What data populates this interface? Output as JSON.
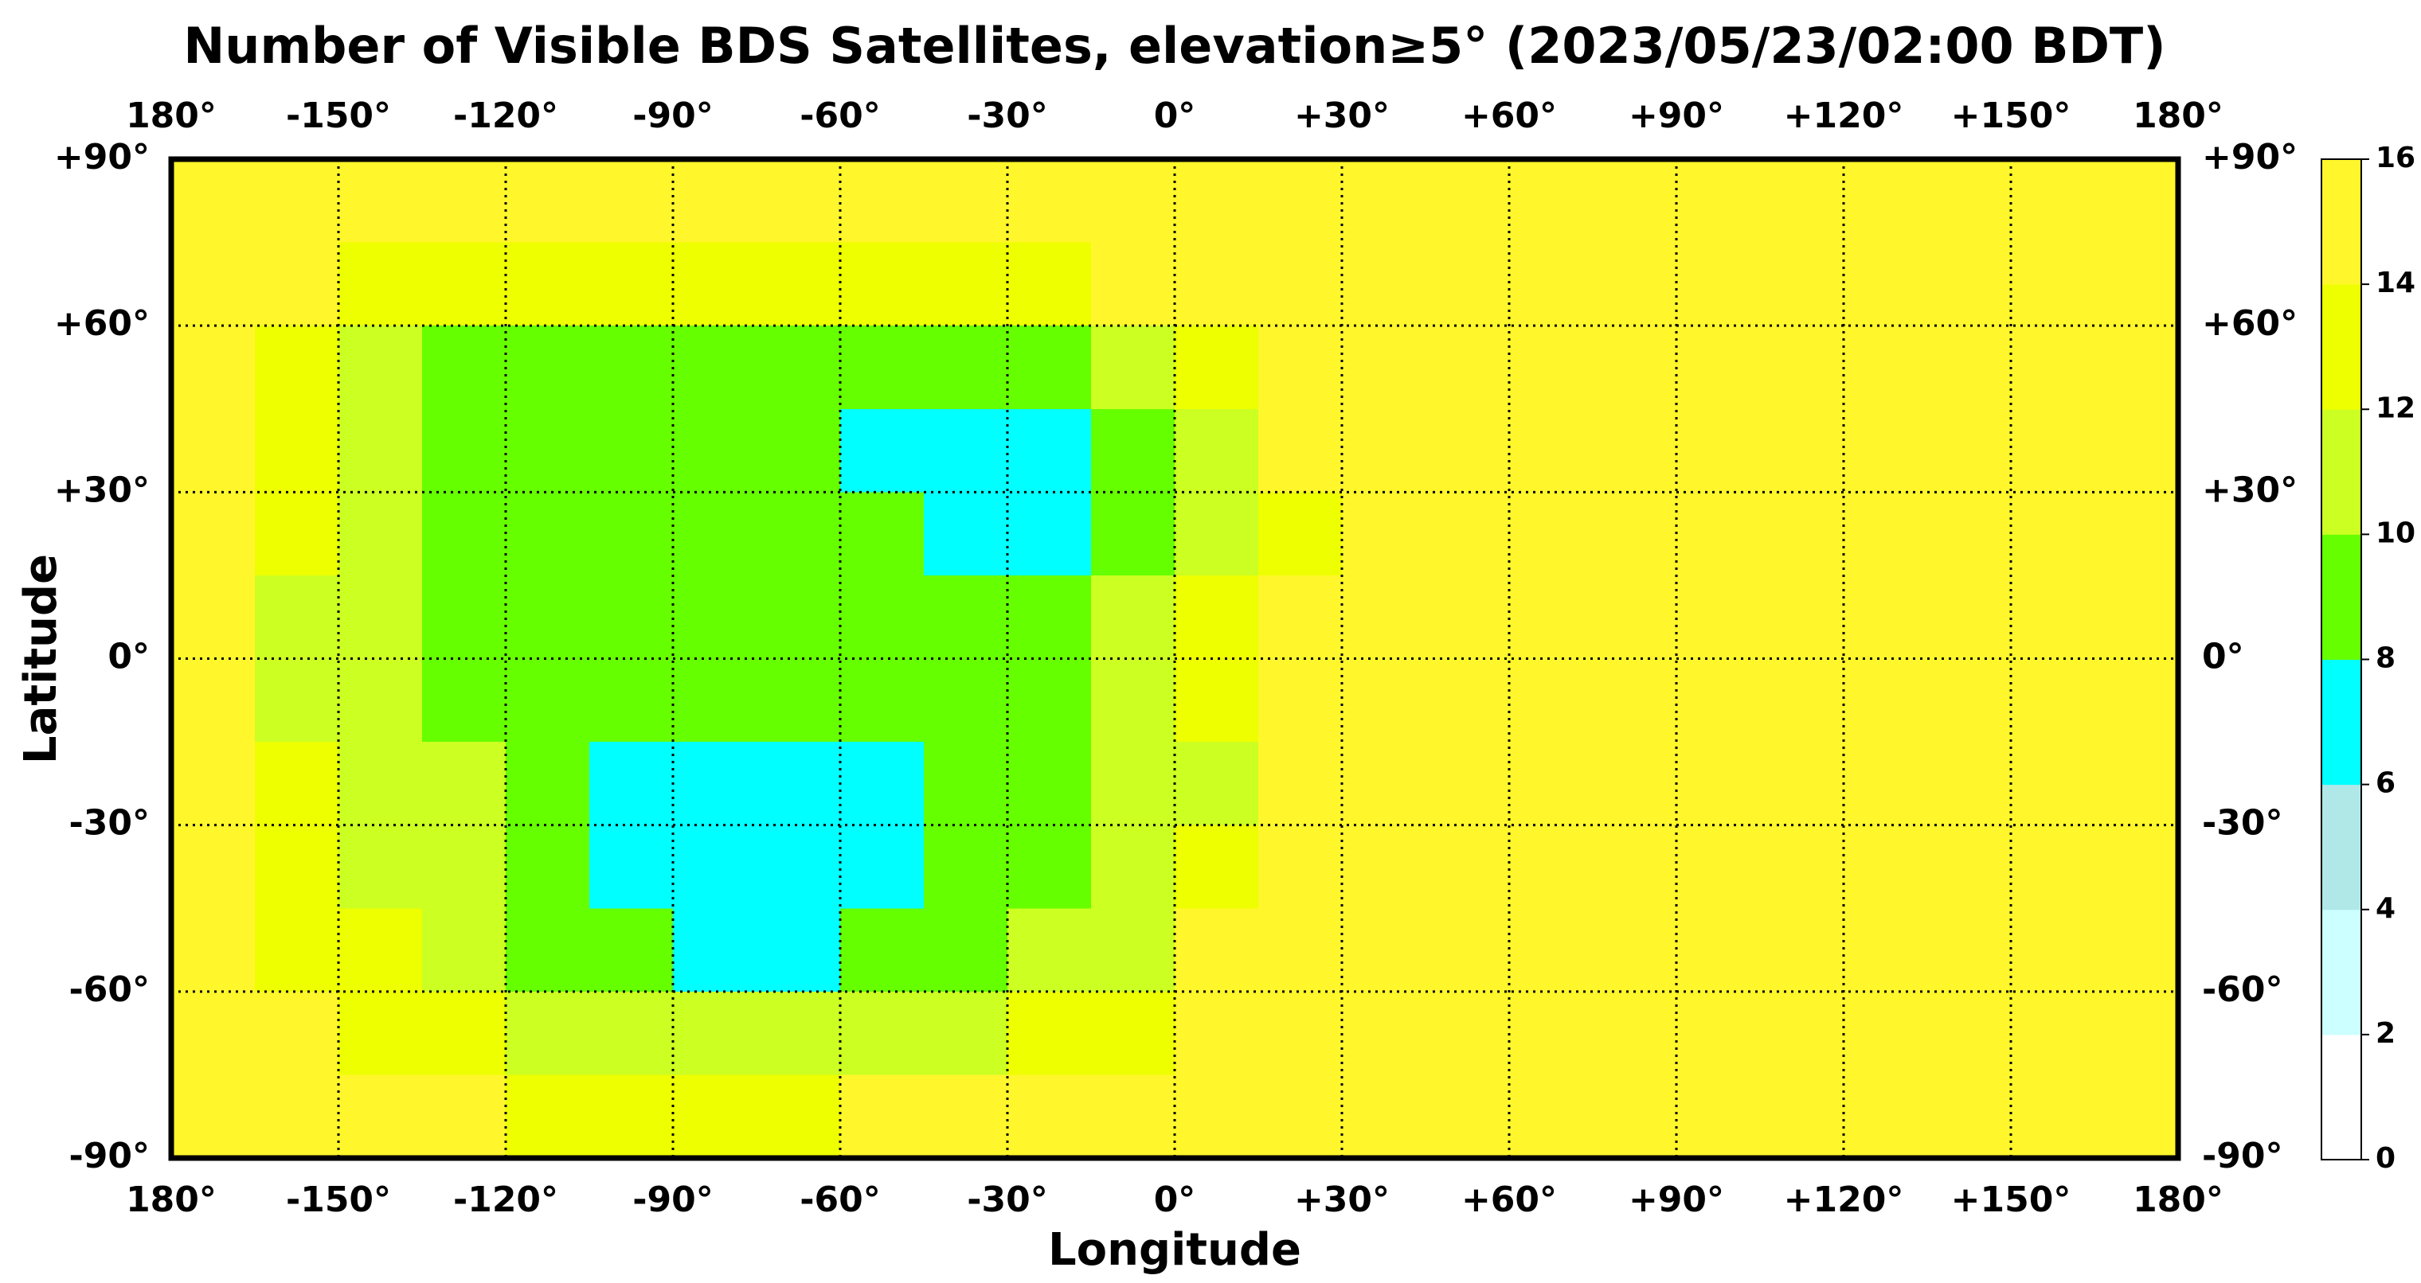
{
  "chart_data": {
    "type": "heatmap",
    "title": "Number of Visible BDS Satellites, elevation≥5° (2023/05/23/02:00 BDT)",
    "xlabel": "Longitude",
    "ylabel": "Latitude",
    "xlim": [
      -180,
      180
    ],
    "ylim": [
      -90,
      90
    ],
    "xticks": [
      {
        "value": -180,
        "label": "180°"
      },
      {
        "value": -150,
        "label": "-150°"
      },
      {
        "value": -120,
        "label": "-120°"
      },
      {
        "value": -90,
        "label": "-90°"
      },
      {
        "value": -60,
        "label": "-60°"
      },
      {
        "value": -30,
        "label": "-30°"
      },
      {
        "value": 0,
        "label": "0°"
      },
      {
        "value": 30,
        "label": "+30°"
      },
      {
        "value": 60,
        "label": "+60°"
      },
      {
        "value": 90,
        "label": "+90°"
      },
      {
        "value": 120,
        "label": "+120°"
      },
      {
        "value": 150,
        "label": "+150°"
      },
      {
        "value": 180,
        "label": "180°"
      }
    ],
    "yticks": [
      {
        "value": 90,
        "label": "+90°"
      },
      {
        "value": 60,
        "label": "+60°"
      },
      {
        "value": 30,
        "label": "+30°"
      },
      {
        "value": 0,
        "label": "0°"
      },
      {
        "value": -30,
        "label": "-30°"
      },
      {
        "value": -60,
        "label": "-60°"
      },
      {
        "value": -90,
        "label": "-90°"
      }
    ],
    "grid": true,
    "x": [
      -180,
      -165,
      -150,
      -135,
      -120,
      -105,
      -90,
      -75,
      -60,
      -45,
      -30,
      -15,
      0,
      15,
      30,
      45,
      60,
      75,
      90,
      105,
      120,
      135,
      150,
      165,
      180
    ],
    "y": [
      90,
      75,
      60,
      45,
      30,
      15,
      0,
      -15,
      -30,
      -45,
      -60,
      -75,
      -90
    ],
    "z": [
      [
        15,
        15,
        15,
        15,
        15,
        15,
        15,
        15,
        15,
        15,
        15,
        15,
        15,
        15,
        15,
        15,
        15,
        15,
        15,
        15,
        15,
        15,
        15,
        15
      ],
      [
        15,
        15,
        13,
        13,
        13,
        13,
        13,
        13,
        13,
        13,
        13,
        15,
        15,
        15,
        15,
        15,
        15,
        15,
        15,
        15,
        15,
        15,
        15,
        15
      ],
      [
        15,
        13,
        11,
        9,
        9,
        9,
        9,
        9,
        9,
        9,
        9,
        11,
        13,
        15,
        15,
        15,
        15,
        15,
        15,
        15,
        15,
        15,
        15,
        15
      ],
      [
        15,
        13,
        11,
        9,
        9,
        9,
        9,
        9,
        7,
        7,
        7,
        9,
        11,
        15,
        15,
        15,
        15,
        15,
        15,
        15,
        15,
        15,
        15,
        15
      ],
      [
        15,
        13,
        11,
        9,
        9,
        9,
        9,
        9,
        9,
        7,
        7,
        9,
        11,
        13,
        15,
        15,
        15,
        15,
        15,
        15,
        15,
        15,
        15,
        15
      ],
      [
        15,
        11,
        11,
        9,
        9,
        9,
        9,
        9,
        9,
        9,
        9,
        11,
        13,
        15,
        15,
        15,
        15,
        15,
        15,
        15,
        15,
        15,
        15,
        15
      ],
      [
        15,
        11,
        11,
        9,
        9,
        9,
        9,
        9,
        9,
        9,
        9,
        11,
        13,
        15,
        15,
        15,
        15,
        15,
        15,
        15,
        15,
        15,
        15,
        15
      ],
      [
        15,
        13,
        11,
        11,
        9,
        7,
        7,
        7,
        7,
        9,
        9,
        11,
        11,
        15,
        15,
        15,
        15,
        15,
        15,
        15,
        15,
        15,
        15,
        15
      ],
      [
        15,
        13,
        11,
        11,
        9,
        7,
        7,
        7,
        7,
        9,
        9,
        11,
        13,
        15,
        15,
        15,
        15,
        15,
        15,
        15,
        15,
        15,
        15,
        15
      ],
      [
        15,
        13,
        13,
        11,
        9,
        9,
        7,
        7,
        9,
        9,
        11,
        11,
        15,
        15,
        15,
        15,
        15,
        15,
        15,
        15,
        15,
        15,
        15,
        15
      ],
      [
        15,
        15,
        13,
        13,
        11,
        11,
        11,
        11,
        11,
        11,
        13,
        13,
        15,
        15,
        15,
        15,
        15,
        15,
        15,
        15,
        15,
        15,
        15,
        15
      ],
      [
        15,
        15,
        15,
        15,
        13,
        13,
        13,
        13,
        15,
        15,
        15,
        15,
        15,
        15,
        15,
        15,
        15,
        15,
        15,
        15,
        15,
        15,
        15,
        15
      ]
    ],
    "cticks": [
      0,
      2,
      4,
      6,
      8,
      10,
      12,
      14,
      16
    ],
    "colors": [
      "#ffffff",
      "#ccffff",
      "#b0e8e8",
      "#00ffff",
      "#66ff00",
      "#ccff22",
      "#eeff00",
      "#fff62b"
    ]
  }
}
